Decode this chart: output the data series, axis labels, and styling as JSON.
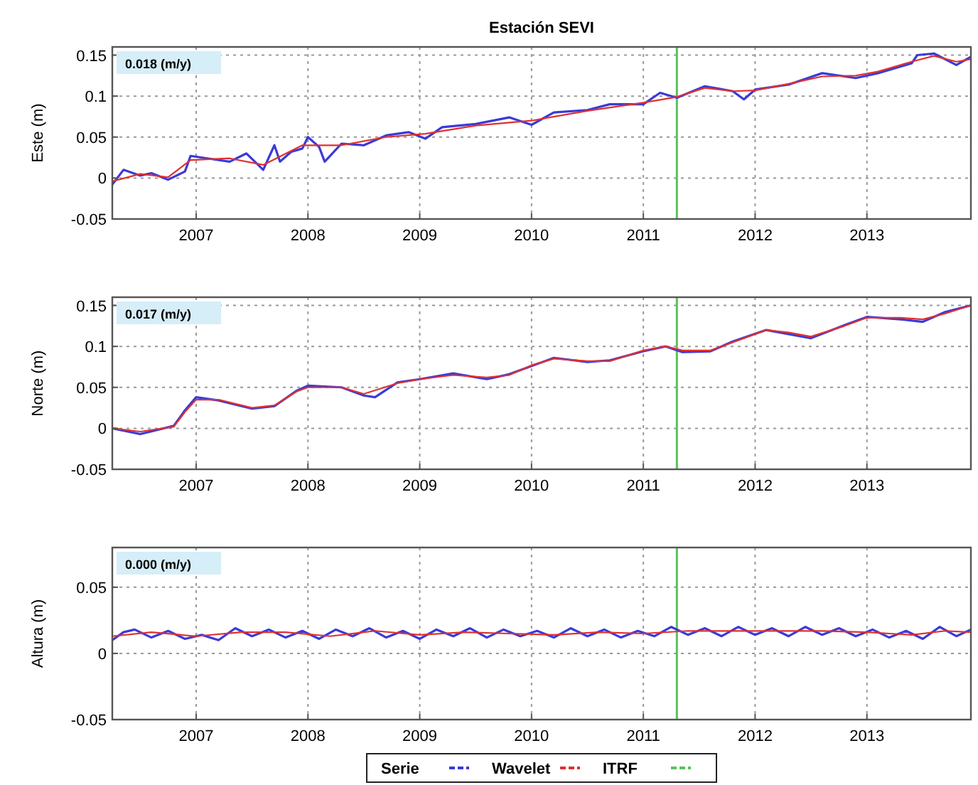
{
  "chart_data": [
    {
      "type": "line",
      "title": "Estación SEVI",
      "ylabel": "Este (m)",
      "annotations": [
        "0.018 (m/y)"
      ],
      "xlim": [
        2006.25,
        2013.93
      ],
      "xticks": [
        2007,
        2008,
        2009,
        2010,
        2011,
        2012,
        2013
      ],
      "ylim": [
        -0.05,
        0.16
      ],
      "yticks": [
        -0.05,
        0,
        0.05,
        0.1,
        0.15
      ],
      "grid": true,
      "legend": false,
      "ref_lines": [
        {
          "axis": "x",
          "value": 2011.3,
          "color": "#5cc05c"
        }
      ],
      "series": [
        {
          "color": "#3a3ad8",
          "x": [
            2006.25,
            2006.35,
            2006.5,
            2006.6,
            2006.75,
            2006.9,
            2006.95,
            2007.1,
            2007.3,
            2007.45,
            2007.6,
            2007.7,
            2007.75,
            2007.85,
            2007.95,
            2008.0,
            2008.1,
            2008.15,
            2008.3,
            2008.5,
            2008.7,
            2008.9,
            2009.05,
            2009.2,
            2009.5,
            2009.8,
            2010.0,
            2010.2,
            2010.5,
            2010.7,
            2011.0,
            2011.15,
            2011.3,
            2011.55,
            2011.8,
            2011.9,
            2012.0,
            2012.3,
            2012.6,
            2012.9,
            2013.1,
            2013.4,
            2013.45,
            2013.6,
            2013.8,
            2013.93
          ],
          "values": [
            -0.008,
            0.01,
            0.003,
            0.006,
            -0.002,
            0.008,
            0.027,
            0.024,
            0.02,
            0.03,
            0.01,
            0.04,
            0.02,
            0.032,
            0.036,
            0.05,
            0.038,
            0.02,
            0.042,
            0.04,
            0.052,
            0.056,
            0.048,
            0.062,
            0.066,
            0.074,
            0.065,
            0.08,
            0.083,
            0.09,
            0.09,
            0.104,
            0.098,
            0.112,
            0.106,
            0.096,
            0.108,
            0.114,
            0.128,
            0.122,
            0.128,
            0.14,
            0.15,
            0.152,
            0.138,
            0.148
          ]
        },
        {
          "color": "#e03030",
          "x": [
            2006.25,
            2006.5,
            2006.75,
            2006.95,
            2007.3,
            2007.6,
            2007.95,
            2008.3,
            2008.7,
            2009.05,
            2009.5,
            2010.0,
            2010.5,
            2011.0,
            2011.3,
            2011.55,
            2011.8,
            2012.0,
            2012.3,
            2012.6,
            2012.9,
            2013.1,
            2013.4,
            2013.6,
            2013.8,
            2013.93
          ],
          "values": [
            -0.004,
            0.005,
            0.001,
            0.022,
            0.024,
            0.016,
            0.04,
            0.04,
            0.05,
            0.054,
            0.064,
            0.07,
            0.082,
            0.092,
            0.099,
            0.11,
            0.106,
            0.107,
            0.115,
            0.124,
            0.125,
            0.13,
            0.142,
            0.149,
            0.142,
            0.145
          ]
        }
      ]
    },
    {
      "type": "line",
      "ylabel": "Norte (m)",
      "annotations": [
        "0.017 (m/y)"
      ],
      "xlim": [
        2006.25,
        2013.93
      ],
      "xticks": [
        2007,
        2008,
        2009,
        2010,
        2011,
        2012,
        2013
      ],
      "ylim": [
        -0.05,
        0.16
      ],
      "yticks": [
        -0.05,
        0,
        0.05,
        0.1,
        0.15
      ],
      "grid": true,
      "legend": false,
      "ref_lines": [
        {
          "axis": "x",
          "value": 2011.3,
          "color": "#5cc05c"
        }
      ],
      "series": [
        {
          "color": "#3a3ad8",
          "x": [
            2006.25,
            2006.5,
            2006.8,
            2006.9,
            2007.0,
            2007.2,
            2007.5,
            2007.7,
            2007.9,
            2008.0,
            2008.3,
            2008.5,
            2008.6,
            2008.8,
            2009.0,
            2009.3,
            2009.6,
            2009.8,
            2010.0,
            2010.2,
            2010.5,
            2010.7,
            2011.0,
            2011.2,
            2011.35,
            2011.6,
            2011.8,
            2012.1,
            2012.3,
            2012.5,
            2012.8,
            2013.0,
            2013.3,
            2013.5,
            2013.7,
            2013.93
          ],
          "values": [
            0.0,
            -0.007,
            0.003,
            0.022,
            0.038,
            0.034,
            0.024,
            0.027,
            0.046,
            0.052,
            0.05,
            0.04,
            0.038,
            0.056,
            0.06,
            0.067,
            0.06,
            0.066,
            0.076,
            0.086,
            0.081,
            0.083,
            0.094,
            0.1,
            0.093,
            0.094,
            0.106,
            0.12,
            0.115,
            0.11,
            0.126,
            0.136,
            0.133,
            0.13,
            0.142,
            0.15
          ]
        },
        {
          "color": "#e03030",
          "x": [
            2006.25,
            2006.5,
            2006.8,
            2006.9,
            2007.0,
            2007.2,
            2007.5,
            2007.7,
            2007.9,
            2008.0,
            2008.3,
            2008.5,
            2008.8,
            2009.0,
            2009.3,
            2009.6,
            2009.8,
            2010.0,
            2010.2,
            2010.5,
            2010.7,
            2011.0,
            2011.2,
            2011.35,
            2011.6,
            2011.8,
            2012.1,
            2012.3,
            2012.5,
            2012.8,
            2013.0,
            2013.3,
            2013.5,
            2013.7,
            2013.93
          ],
          "values": [
            0.0,
            -0.004,
            0.002,
            0.02,
            0.035,
            0.035,
            0.025,
            0.028,
            0.045,
            0.05,
            0.05,
            0.042,
            0.055,
            0.06,
            0.065,
            0.062,
            0.065,
            0.077,
            0.085,
            0.082,
            0.082,
            0.095,
            0.1,
            0.095,
            0.095,
            0.105,
            0.12,
            0.117,
            0.112,
            0.125,
            0.135,
            0.135,
            0.133,
            0.14,
            0.15
          ]
        }
      ]
    },
    {
      "type": "line",
      "ylabel": "Altura (m)",
      "annotations": [
        "0.000 (m/y)"
      ],
      "xlim": [
        2006.25,
        2013.93
      ],
      "xticks": [
        2007,
        2008,
        2009,
        2010,
        2011,
        2012,
        2013
      ],
      "ylim": [
        -0.05,
        0.08
      ],
      "yticks": [
        -0.05,
        0,
        0.05
      ],
      "grid": true,
      "legend": "bottom",
      "ref_lines": [
        {
          "axis": "x",
          "value": 2011.3,
          "color": "#5cc05c",
          "label": "ITRF"
        }
      ],
      "series": [
        {
          "name": "Serie",
          "color": "#3a3ad8",
          "x": [
            2006.25,
            2006.35,
            2006.45,
            2006.6,
            2006.75,
            2006.9,
            2007.05,
            2007.2,
            2007.35,
            2007.5,
            2007.65,
            2007.8,
            2007.95,
            2008.1,
            2008.25,
            2008.4,
            2008.55,
            2008.7,
            2008.85,
            2009.0,
            2009.15,
            2009.3,
            2009.45,
            2009.6,
            2009.75,
            2009.9,
            2010.05,
            2010.2,
            2010.35,
            2010.5,
            2010.65,
            2010.8,
            2010.95,
            2011.1,
            2011.25,
            2011.4,
            2011.55,
            2011.7,
            2011.85,
            2012.0,
            2012.15,
            2012.3,
            2012.45,
            2012.6,
            2012.75,
            2012.9,
            2013.05,
            2013.2,
            2013.35,
            2013.5,
            2013.65,
            2013.8,
            2013.93
          ],
          "values": [
            0.01,
            0.016,
            0.018,
            0.012,
            0.017,
            0.011,
            0.014,
            0.01,
            0.019,
            0.013,
            0.018,
            0.012,
            0.017,
            0.011,
            0.018,
            0.013,
            0.019,
            0.012,
            0.017,
            0.011,
            0.018,
            0.013,
            0.019,
            0.012,
            0.018,
            0.013,
            0.017,
            0.012,
            0.019,
            0.013,
            0.018,
            0.012,
            0.017,
            0.013,
            0.02,
            0.014,
            0.019,
            0.013,
            0.02,
            0.014,
            0.019,
            0.013,
            0.02,
            0.014,
            0.019,
            0.013,
            0.018,
            0.012,
            0.017,
            0.011,
            0.02,
            0.013,
            0.018
          ]
        },
        {
          "name": "Wavelet",
          "color": "#e03030",
          "x": [
            2006.25,
            2006.6,
            2007.0,
            2007.4,
            2007.8,
            2008.2,
            2008.6,
            2009.0,
            2009.4,
            2009.8,
            2010.2,
            2010.6,
            2011.0,
            2011.4,
            2011.8,
            2012.2,
            2012.6,
            2013.0,
            2013.4,
            2013.7,
            2013.93
          ],
          "values": [
            0.013,
            0.016,
            0.013,
            0.016,
            0.016,
            0.013,
            0.017,
            0.014,
            0.016,
            0.015,
            0.014,
            0.016,
            0.015,
            0.017,
            0.017,
            0.017,
            0.017,
            0.016,
            0.014,
            0.017,
            0.016
          ]
        }
      ]
    }
  ]
}
